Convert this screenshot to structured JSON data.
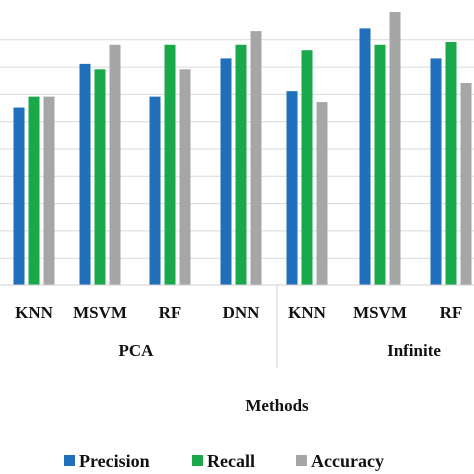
{
  "chart_data": {
    "type": "bar",
    "xlabel": "Methods",
    "ylabel": "",
    "ylim": [
      0,
      1
    ],
    "grid": true,
    "legend_position": "bottom",
    "groups": [
      {
        "name": "PCA",
        "categories": [
          "KNN",
          "MSVM",
          "RF",
          "DNN"
        ]
      },
      {
        "name": "Infinite",
        "categories": [
          "KNN",
          "MSVM",
          "RF"
        ]
      }
    ],
    "categories": [
      "KNN",
      "MSVM",
      "RF",
      "DNN",
      "KNN",
      "MSVM",
      "RF"
    ],
    "series": [
      {
        "name": "Precision",
        "color": "#1f6fba",
        "values": [
          0.65,
          0.81,
          0.69,
          0.83,
          0.71,
          0.94,
          0.83
        ]
      },
      {
        "name": "Recall",
        "color": "#19a84a",
        "values": [
          0.69,
          0.79,
          0.88,
          0.88,
          0.86,
          0.88,
          0.89
        ]
      },
      {
        "name": "Accuracy",
        "color": "#a6a6a6",
        "values": [
          0.69,
          0.88,
          0.79,
          0.93,
          0.67,
          1.0,
          0.74
        ]
      }
    ]
  }
}
